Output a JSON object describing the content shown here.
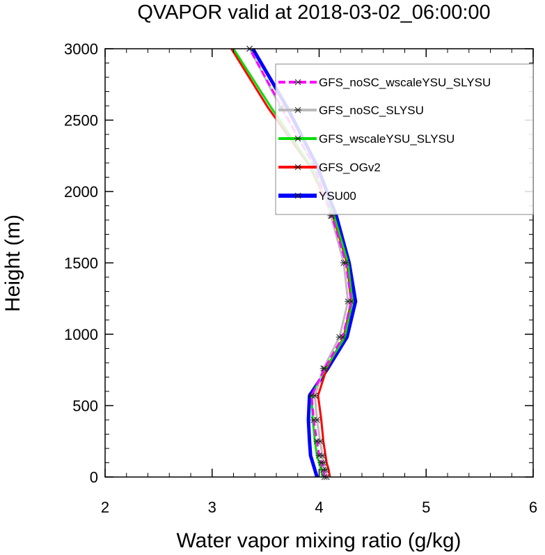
{
  "chart_data": {
    "type": "line",
    "title": "QVAPOR valid at 2018-03-02_06:00:00",
    "xlabel": "Water vapor mixing ratio (g/kg)",
    "ylabel": "Height (m)",
    "xlim": [
      2,
      6
    ],
    "ylim": [
      0,
      3000
    ],
    "xticks": [
      "2",
      "3",
      "4",
      "5",
      "6"
    ],
    "yticks": [
      "0",
      "500",
      "1000",
      "1500",
      "2000",
      "2500",
      "3000"
    ],
    "grid": false,
    "legend_position": "top-right",
    "heights": [
      0,
      50,
      100,
      150,
      250,
      400,
      570,
      760,
      980,
      1230,
      1500,
      1830,
      2180,
      2590,
      3000
    ],
    "series": [
      {
        "name": "GFS_noSC_wscaleYSU_SLYSU",
        "color": "#ff00ff",
        "style": "dashed",
        "markers": true,
        "x": [
          4.05,
          4.04,
          4.02,
          4.0,
          3.98,
          3.95,
          3.93,
          4.05,
          4.22,
          4.3,
          4.25,
          4.12,
          3.95,
          3.65,
          3.35
        ]
      },
      {
        "name": "GFS_noSC_SLYSU",
        "color": "#bbbbbb",
        "style": "solid",
        "markers": true,
        "x": [
          4.07,
          4.06,
          4.04,
          4.03,
          4.01,
          3.98,
          3.96,
          4.04,
          4.19,
          4.27,
          4.23,
          4.11,
          3.95,
          3.64,
          3.35
        ]
      },
      {
        "name": "GFS_wscaleYSU_SLYSU",
        "color": "#00dd00",
        "style": "solid",
        "markers": false,
        "x": [
          4.03,
          4.02,
          4.0,
          3.98,
          3.96,
          3.94,
          3.93,
          4.06,
          4.24,
          4.31,
          4.27,
          4.14,
          3.92,
          3.55,
          3.2
        ]
      },
      {
        "name": "GFS_OGv2",
        "color": "#ff0000",
        "style": "solid",
        "markers": false,
        "x": [
          4.1,
          4.09,
          4.07,
          4.06,
          4.04,
          4.02,
          3.99,
          4.07,
          4.23,
          4.3,
          4.26,
          4.13,
          3.91,
          3.52,
          3.18
        ]
      },
      {
        "name": "YSU00",
        "color": "#0000ff",
        "style": "solid",
        "markers": false,
        "x": [
          3.98,
          3.96,
          3.94,
          3.92,
          3.91,
          3.9,
          3.91,
          4.08,
          4.26,
          4.34,
          4.28,
          4.16,
          3.98,
          3.7,
          3.38
        ]
      }
    ]
  }
}
